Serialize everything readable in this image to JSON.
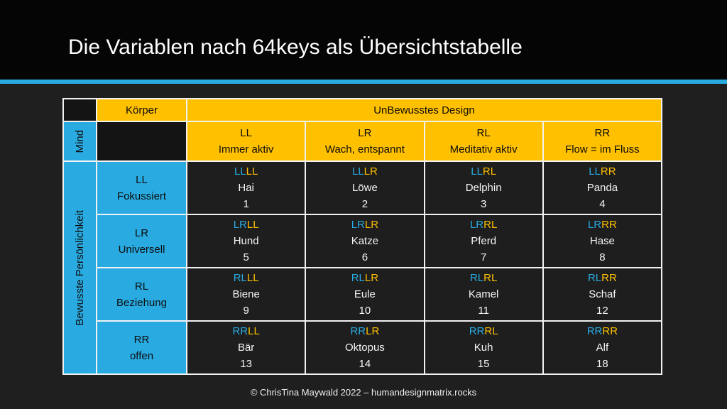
{
  "title": "Die Variablen nach 64keys als Übersichtstabelle",
  "footer": "© ChrisTina Maywald 2022 – humandesignmatrix.rocks",
  "colors": {
    "gold": "#FFC000",
    "blue": "#29ABE2",
    "divider_blue": "#29ABE2",
    "cell_dark": "#1e1e1e",
    "grid_line": "#f2f2f2"
  },
  "table": {
    "mind_label": "Mind",
    "koerper_label": "Körper",
    "unbewusstes_label": "UnBewusstes Design",
    "bewusste_label": "Bewusste Persönlichkeit",
    "columns": [
      {
        "code": "LL",
        "desc": "Immer aktiv"
      },
      {
        "code": "LR",
        "desc": "Wach, entspannt"
      },
      {
        "code": "RL",
        "desc": "Meditativ aktiv"
      },
      {
        "code": "RR",
        "desc": "Flow = im Fluss"
      }
    ],
    "rows": [
      {
        "code": "LL",
        "desc": "Fokussiert",
        "cells": [
          {
            "p": "LL",
            "d": "LL",
            "animal": "Hai",
            "num": "1"
          },
          {
            "p": "LL",
            "d": "LR",
            "animal": "Löwe",
            "num": "2"
          },
          {
            "p": "LL",
            "d": "RL",
            "animal": "Delphin",
            "num": "3"
          },
          {
            "p": "LL",
            "d": "RR",
            "animal": "Panda",
            "num": "4"
          }
        ]
      },
      {
        "code": "LR",
        "desc": "Universell",
        "cells": [
          {
            "p": "LR",
            "d": "LL",
            "animal": "Hund",
            "num": "5"
          },
          {
            "p": "LR",
            "d": "LR",
            "animal": "Katze",
            "num": "6"
          },
          {
            "p": "LR",
            "d": "RL",
            "animal": "Pferd",
            "num": "7"
          },
          {
            "p": "LR",
            "d": "RR",
            "animal": "Hase",
            "num": "8"
          }
        ]
      },
      {
        "code": "RL",
        "desc": "Beziehung",
        "cells": [
          {
            "p": "RL",
            "d": "LL",
            "animal": "Biene",
            "num": "9"
          },
          {
            "p": "RL",
            "d": "LR",
            "animal": "Eule",
            "num": "10"
          },
          {
            "p": "RL",
            "d": "RL",
            "animal": "Kamel",
            "num": "11"
          },
          {
            "p": "RL",
            "d": "RR",
            "animal": "Schaf",
            "num": "12"
          }
        ]
      },
      {
        "code": "RR",
        "desc": "offen",
        "cells": [
          {
            "p": "RR",
            "d": "LL",
            "animal": "Bär",
            "num": "13"
          },
          {
            "p": "RR",
            "d": "LR",
            "animal": "Oktopus",
            "num": "14"
          },
          {
            "p": "RR",
            "d": "RL",
            "animal": "Kuh",
            "num": "15"
          },
          {
            "p": "RR",
            "d": "RR",
            "animal": "Alf",
            "num": "18"
          }
        ]
      }
    ]
  }
}
